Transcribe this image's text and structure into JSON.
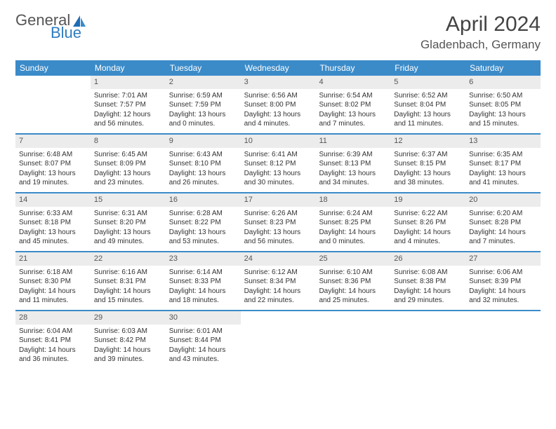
{
  "brand": {
    "part1": "General",
    "part2": "Blue"
  },
  "title": "April 2024",
  "location": "Gladenbach, Germany",
  "colors": {
    "header_bg": "#3b8bc9",
    "daynum_bg": "#ececec",
    "page_bg": "#ffffff",
    "text": "#333333",
    "title_text": "#444444"
  },
  "weekdays": [
    "Sunday",
    "Monday",
    "Tuesday",
    "Wednesday",
    "Thursday",
    "Friday",
    "Saturday"
  ],
  "weeks": [
    [
      null,
      {
        "n": "1",
        "sr": "Sunrise: 7:01 AM",
        "ss": "Sunset: 7:57 PM",
        "d1": "Daylight: 12 hours",
        "d2": "and 56 minutes."
      },
      {
        "n": "2",
        "sr": "Sunrise: 6:59 AM",
        "ss": "Sunset: 7:59 PM",
        "d1": "Daylight: 13 hours",
        "d2": "and 0 minutes."
      },
      {
        "n": "3",
        "sr": "Sunrise: 6:56 AM",
        "ss": "Sunset: 8:00 PM",
        "d1": "Daylight: 13 hours",
        "d2": "and 4 minutes."
      },
      {
        "n": "4",
        "sr": "Sunrise: 6:54 AM",
        "ss": "Sunset: 8:02 PM",
        "d1": "Daylight: 13 hours",
        "d2": "and 7 minutes."
      },
      {
        "n": "5",
        "sr": "Sunrise: 6:52 AM",
        "ss": "Sunset: 8:04 PM",
        "d1": "Daylight: 13 hours",
        "d2": "and 11 minutes."
      },
      {
        "n": "6",
        "sr": "Sunrise: 6:50 AM",
        "ss": "Sunset: 8:05 PM",
        "d1": "Daylight: 13 hours",
        "d2": "and 15 minutes."
      }
    ],
    [
      {
        "n": "7",
        "sr": "Sunrise: 6:48 AM",
        "ss": "Sunset: 8:07 PM",
        "d1": "Daylight: 13 hours",
        "d2": "and 19 minutes."
      },
      {
        "n": "8",
        "sr": "Sunrise: 6:45 AM",
        "ss": "Sunset: 8:09 PM",
        "d1": "Daylight: 13 hours",
        "d2": "and 23 minutes."
      },
      {
        "n": "9",
        "sr": "Sunrise: 6:43 AM",
        "ss": "Sunset: 8:10 PM",
        "d1": "Daylight: 13 hours",
        "d2": "and 26 minutes."
      },
      {
        "n": "10",
        "sr": "Sunrise: 6:41 AM",
        "ss": "Sunset: 8:12 PM",
        "d1": "Daylight: 13 hours",
        "d2": "and 30 minutes."
      },
      {
        "n": "11",
        "sr": "Sunrise: 6:39 AM",
        "ss": "Sunset: 8:13 PM",
        "d1": "Daylight: 13 hours",
        "d2": "and 34 minutes."
      },
      {
        "n": "12",
        "sr": "Sunrise: 6:37 AM",
        "ss": "Sunset: 8:15 PM",
        "d1": "Daylight: 13 hours",
        "d2": "and 38 minutes."
      },
      {
        "n": "13",
        "sr": "Sunrise: 6:35 AM",
        "ss": "Sunset: 8:17 PM",
        "d1": "Daylight: 13 hours",
        "d2": "and 41 minutes."
      }
    ],
    [
      {
        "n": "14",
        "sr": "Sunrise: 6:33 AM",
        "ss": "Sunset: 8:18 PM",
        "d1": "Daylight: 13 hours",
        "d2": "and 45 minutes."
      },
      {
        "n": "15",
        "sr": "Sunrise: 6:31 AM",
        "ss": "Sunset: 8:20 PM",
        "d1": "Daylight: 13 hours",
        "d2": "and 49 minutes."
      },
      {
        "n": "16",
        "sr": "Sunrise: 6:28 AM",
        "ss": "Sunset: 8:22 PM",
        "d1": "Daylight: 13 hours",
        "d2": "and 53 minutes."
      },
      {
        "n": "17",
        "sr": "Sunrise: 6:26 AM",
        "ss": "Sunset: 8:23 PM",
        "d1": "Daylight: 13 hours",
        "d2": "and 56 minutes."
      },
      {
        "n": "18",
        "sr": "Sunrise: 6:24 AM",
        "ss": "Sunset: 8:25 PM",
        "d1": "Daylight: 14 hours",
        "d2": "and 0 minutes."
      },
      {
        "n": "19",
        "sr": "Sunrise: 6:22 AM",
        "ss": "Sunset: 8:26 PM",
        "d1": "Daylight: 14 hours",
        "d2": "and 4 minutes."
      },
      {
        "n": "20",
        "sr": "Sunrise: 6:20 AM",
        "ss": "Sunset: 8:28 PM",
        "d1": "Daylight: 14 hours",
        "d2": "and 7 minutes."
      }
    ],
    [
      {
        "n": "21",
        "sr": "Sunrise: 6:18 AM",
        "ss": "Sunset: 8:30 PM",
        "d1": "Daylight: 14 hours",
        "d2": "and 11 minutes."
      },
      {
        "n": "22",
        "sr": "Sunrise: 6:16 AM",
        "ss": "Sunset: 8:31 PM",
        "d1": "Daylight: 14 hours",
        "d2": "and 15 minutes."
      },
      {
        "n": "23",
        "sr": "Sunrise: 6:14 AM",
        "ss": "Sunset: 8:33 PM",
        "d1": "Daylight: 14 hours",
        "d2": "and 18 minutes."
      },
      {
        "n": "24",
        "sr": "Sunrise: 6:12 AM",
        "ss": "Sunset: 8:34 PM",
        "d1": "Daylight: 14 hours",
        "d2": "and 22 minutes."
      },
      {
        "n": "25",
        "sr": "Sunrise: 6:10 AM",
        "ss": "Sunset: 8:36 PM",
        "d1": "Daylight: 14 hours",
        "d2": "and 25 minutes."
      },
      {
        "n": "26",
        "sr": "Sunrise: 6:08 AM",
        "ss": "Sunset: 8:38 PM",
        "d1": "Daylight: 14 hours",
        "d2": "and 29 minutes."
      },
      {
        "n": "27",
        "sr": "Sunrise: 6:06 AM",
        "ss": "Sunset: 8:39 PM",
        "d1": "Daylight: 14 hours",
        "d2": "and 32 minutes."
      }
    ],
    [
      {
        "n": "28",
        "sr": "Sunrise: 6:04 AM",
        "ss": "Sunset: 8:41 PM",
        "d1": "Daylight: 14 hours",
        "d2": "and 36 minutes."
      },
      {
        "n": "29",
        "sr": "Sunrise: 6:03 AM",
        "ss": "Sunset: 8:42 PM",
        "d1": "Daylight: 14 hours",
        "d2": "and 39 minutes."
      },
      {
        "n": "30",
        "sr": "Sunrise: 6:01 AM",
        "ss": "Sunset: 8:44 PM",
        "d1": "Daylight: 14 hours",
        "d2": "and 43 minutes."
      },
      null,
      null,
      null,
      null
    ]
  ]
}
